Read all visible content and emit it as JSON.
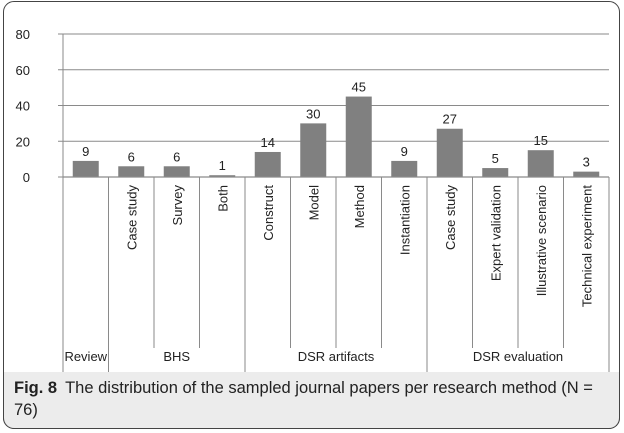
{
  "chart_data": {
    "type": "bar",
    "ylim": [
      0,
      80
    ],
    "yticks": [
      0,
      20,
      40,
      60,
      80
    ],
    "grid": true,
    "categories": [
      "",
      "Case study",
      "Survey",
      "Both",
      "Construct",
      "Model",
      "Method",
      "Instantiation",
      "Case study",
      "Expert validation",
      "Illustrative scenario",
      "Technical experiment"
    ],
    "values": [
      9,
      6,
      6,
      1,
      14,
      30,
      45,
      9,
      27,
      5,
      15,
      3
    ],
    "groups": [
      {
        "label": "Review",
        "count": 1
      },
      {
        "label": "BHS",
        "count": 3
      },
      {
        "label": "DSR artifacts",
        "count": 4
      },
      {
        "label": "DSR evaluation",
        "count": 4
      }
    ],
    "bar_color": "#808080"
  },
  "caption": {
    "label": "Fig. 8",
    "text": "The distribution of the sampled journal papers per research method (N = 76)"
  }
}
